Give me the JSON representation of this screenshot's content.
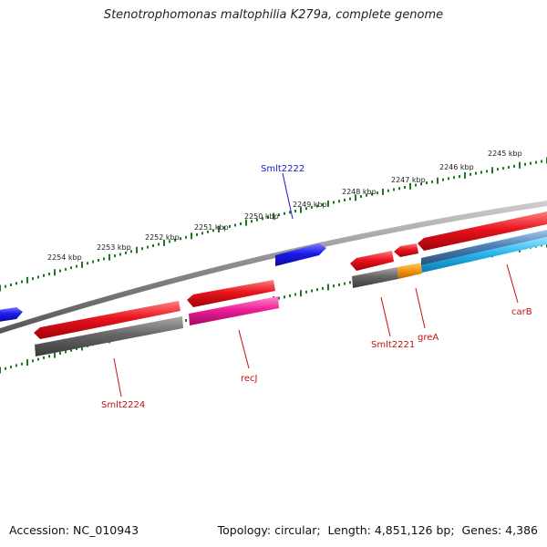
{
  "title": "Stenotrophomonas maltophilia K279a, complete genome",
  "footer": {
    "accession_label": "Accession:",
    "accession": "NC_010943",
    "topology_label": "Topology:",
    "topology": "circular",
    "length_label": "Length:",
    "length": "4,851,126 bp",
    "genes_label": "Genes:",
    "genes": "4,386"
  },
  "ruler": {
    "unit": "kbp",
    "color": "#1e7a1e",
    "ticks": [
      {
        "label": "2245 kbp"
      },
      {
        "label": "2246 kbp"
      },
      {
        "label": "2247 kbp"
      },
      {
        "label": "2248 kbp"
      },
      {
        "label": "2249 kbp"
      },
      {
        "label": "2250 kbp"
      },
      {
        "label": "2251 kbp"
      },
      {
        "label": "2252 kbp"
      },
      {
        "label": "2253 kbp"
      },
      {
        "label": "2254 kbp"
      }
    ]
  },
  "colors": {
    "backbone": "#8a8a8a",
    "cds_red": "#e8141e",
    "cds_grey": "#666666",
    "cds_blue": "#1a1aee",
    "cds_pink": "#ee1f98",
    "cds_orange": "#f59a16",
    "cds_cyan": "#2ab7ee",
    "cds_steel": "#4a82b8",
    "label_blue": "#1a1acc",
    "label_red": "#c41010"
  },
  "gene_labels": [
    {
      "name": "Smlt2222",
      "color": "label_blue"
    },
    {
      "name": "Smlt2224",
      "color": "label_red"
    },
    {
      "name": "recJ",
      "color": "label_red"
    },
    {
      "name": "Smlt2221",
      "color": "label_red"
    },
    {
      "name": "greA",
      "color": "label_red"
    },
    {
      "name": "carB",
      "color": "label_red"
    }
  ]
}
